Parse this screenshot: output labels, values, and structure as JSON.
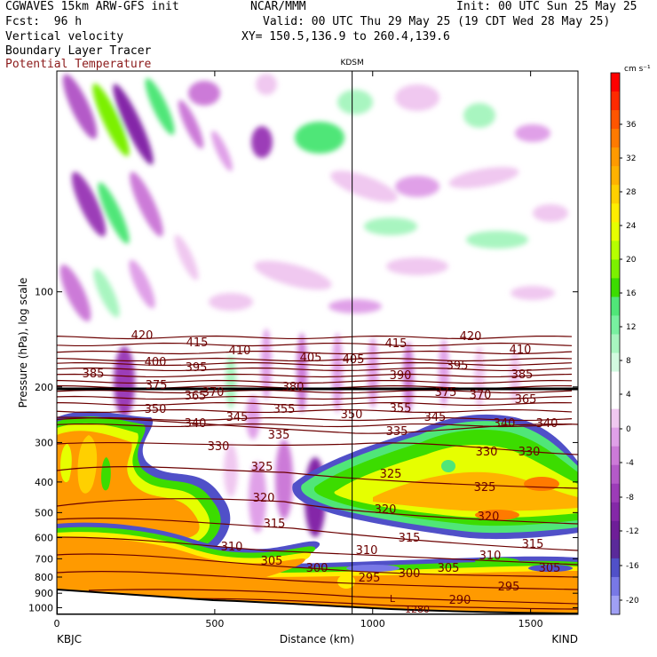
{
  "header": {
    "model": "CGWAVES 15km ARW-GFS init",
    "org": "NCAR/MMM",
    "init": "Init: 00 UTC Sun 25 May 25",
    "fcst": "Fcst:  96 h",
    "valid": "Valid: 00 UTC Thu 29 May 25 (19 CDT Wed 28 May 25)",
    "field1": "Vertical velocity",
    "field2": "Boundary Layer Tracer",
    "field3": "Potential Temperature",
    "xy": "XY= 150.5,136.9 to 260.4,139.6",
    "field3_color": "#8b1a1a"
  },
  "chart_data": {
    "type": "heatmap",
    "xlabel": "Distance (km)",
    "ylabel": "Pressure (hPa), log scale",
    "xlim": [
      0,
      1650
    ],
    "ylim": [
      1050,
      20
    ],
    "x_ticks": [
      "0",
      "500",
      "1000",
      "1500"
    ],
    "y_ticks": [
      "100",
      "200",
      "300",
      "400",
      "500",
      "600",
      "700",
      "800",
      "900",
      "1000"
    ],
    "left_station": "KBJC",
    "right_station": "KIND",
    "mid_station": "KDSM",
    "mid_station_x": 935,
    "colorbar": {
      "unit": "cm s⁻¹",
      "tick_labels": [
        "36",
        "32",
        "28",
        "24",
        "20",
        "16",
        "12",
        "8",
        "4",
        "0",
        "-4",
        "-8",
        "-12",
        "-16",
        "-20"
      ],
      "colors": [
        "#ff0000",
        "#ff2a00",
        "#ff5500",
        "#ff7a00",
        "#ff9a00",
        "#ffb200",
        "#ffd000",
        "#ffee00",
        "#e6ff00",
        "#b6ff00",
        "#7cf000",
        "#3cdc00",
        "#50e678",
        "#78f0a0",
        "#a8f5c0",
        "#d2fae0",
        "#ffffff",
        "#ffffff",
        "#f0c8f0",
        "#e0a0e8",
        "#cc7ad8",
        "#b45ac8",
        "#9c3cb8",
        "#8428a8",
        "#6e1e98",
        "#5a2a9a",
        "#5050c8",
        "#7878e6",
        "#a0a0f5"
      ]
    },
    "theta_labels": [
      {
        "v": "420",
        "x": 160,
        "y": 380
      },
      {
        "v": "415",
        "x": 222,
        "y": 388
      },
      {
        "v": "410",
        "x": 270,
        "y": 397
      },
      {
        "v": "405",
        "x": 350,
        "y": 405
      },
      {
        "v": "405",
        "x": 398,
        "y": 407
      },
      {
        "v": "415",
        "x": 446,
        "y": 389
      },
      {
        "v": "420",
        "x": 530,
        "y": 381
      },
      {
        "v": "410",
        "x": 586,
        "y": 396
      },
      {
        "v": "400",
        "x": 175,
        "y": 410
      },
      {
        "v": "395",
        "x": 221,
        "y": 416
      },
      {
        "v": "395",
        "x": 515,
        "y": 414
      },
      {
        "v": "390",
        "x": 451,
        "y": 425
      },
      {
        "v": "385",
        "x": 105,
        "y": 423
      },
      {
        "v": "385",
        "x": 588,
        "y": 424
      },
      {
        "v": "375",
        "x": 176,
        "y": 436
      },
      {
        "v": "375",
        "x": 502,
        "y": 444
      },
      {
        "v": "370",
        "x": 240,
        "y": 444
      },
      {
        "v": "370",
        "x": 541,
        "y": 447
      },
      {
        "v": "380",
        "x": 330,
        "y": 438
      },
      {
        "v": "365",
        "x": 220,
        "y": 448
      },
      {
        "v": "365",
        "x": 592,
        "y": 452
      },
      {
        "v": "350",
        "x": 175,
        "y": 463
      },
      {
        "v": "355",
        "x": 320,
        "y": 463
      },
      {
        "v": "355",
        "x": 451,
        "y": 462
      },
      {
        "v": "350",
        "x": 396,
        "y": 469
      },
      {
        "v": "345",
        "x": 267,
        "y": 472
      },
      {
        "v": "345",
        "x": 490,
        "y": 472
      },
      {
        "v": "340",
        "x": 220,
        "y": 479
      },
      {
        "v": "340",
        "x": 568,
        "y": 479
      },
      {
        "v": "340",
        "x": 616,
        "y": 479
      },
      {
        "v": "335",
        "x": 314,
        "y": 492
      },
      {
        "v": "335",
        "x": 447,
        "y": 488
      },
      {
        "v": "330",
        "x": 246,
        "y": 505
      },
      {
        "v": "330",
        "x": 548,
        "y": 511
      },
      {
        "v": "330",
        "x": 596,
        "y": 511
      },
      {
        "v": "325",
        "x": 295,
        "y": 528
      },
      {
        "v": "325",
        "x": 440,
        "y": 536
      },
      {
        "v": "325",
        "x": 546,
        "y": 551
      },
      {
        "v": "320",
        "x": 297,
        "y": 563
      },
      {
        "v": "320",
        "x": 434,
        "y": 576
      },
      {
        "v": "320",
        "x": 550,
        "y": 584
      },
      {
        "v": "315",
        "x": 309,
        "y": 592
      },
      {
        "v": "315",
        "x": 461,
        "y": 608
      },
      {
        "v": "315",
        "x": 600,
        "y": 615
      },
      {
        "v": "310",
        "x": 261,
        "y": 618
      },
      {
        "v": "310",
        "x": 413,
        "y": 622
      },
      {
        "v": "310",
        "x": 552,
        "y": 628
      },
      {
        "v": "305",
        "x": 306,
        "y": 634
      },
      {
        "v": "305",
        "x": 505,
        "y": 642
      },
      {
        "v": "305",
        "x": 619,
        "y": 642
      },
      {
        "v": "300",
        "x": 357,
        "y": 642
      },
      {
        "v": "300",
        "x": 461,
        "y": 648
      },
      {
        "v": "295",
        "x": 416,
        "y": 653
      },
      {
        "v": "295",
        "x": 573,
        "y": 663
      },
      {
        "v": "290",
        "x": 518,
        "y": 678
      }
    ],
    "small_labels": [
      {
        "v": "L",
        "x": 442,
        "y": 678
      },
      {
        "v": "1280",
        "x": 470,
        "y": 690
      }
    ]
  }
}
